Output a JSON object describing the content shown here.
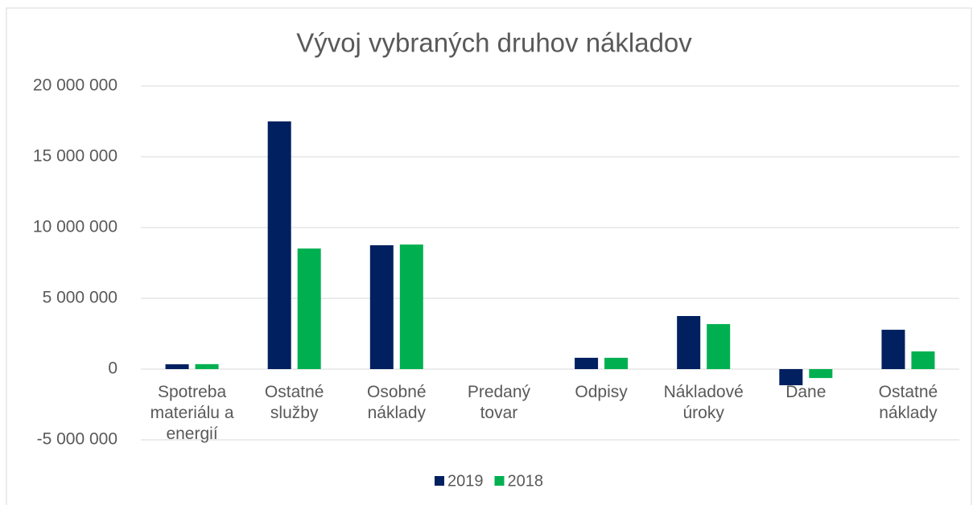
{
  "chart_data": {
    "type": "bar",
    "title": "Vývoj vybraných druhov nákladov",
    "categories": [
      "Spotreba materiálu a energií",
      "Ostatné služby",
      "Osobné náklady",
      "Predaný tovar",
      "Odpisy",
      "Nákladové úroky",
      "Dane",
      "Ostatné náklady"
    ],
    "series": [
      {
        "name": "2019",
        "color": "#002060",
        "values": [
          340000,
          17500000,
          8750000,
          0,
          800000,
          3750000,
          -1140000,
          2780000
        ]
      },
      {
        "name": "2018",
        "color": "#00b050",
        "values": [
          350000,
          8520000,
          8800000,
          0,
          800000,
          3180000,
          -630000,
          1250000
        ]
      }
    ],
    "ylim": [
      -5000000,
      20000000
    ],
    "yticks": [
      {
        "value": -5000000,
        "label": "-5 000 000"
      },
      0,
      {
        "value": 5000000,
        "label": "5 000 000"
      },
      {
        "value": 10000000,
        "label": "10 000 000"
      },
      {
        "value": 15000000,
        "label": "15 000 000"
      },
      {
        "value": 20000000,
        "label": "20 000 000"
      }
    ],
    "grid": true,
    "legend": "bottom"
  }
}
